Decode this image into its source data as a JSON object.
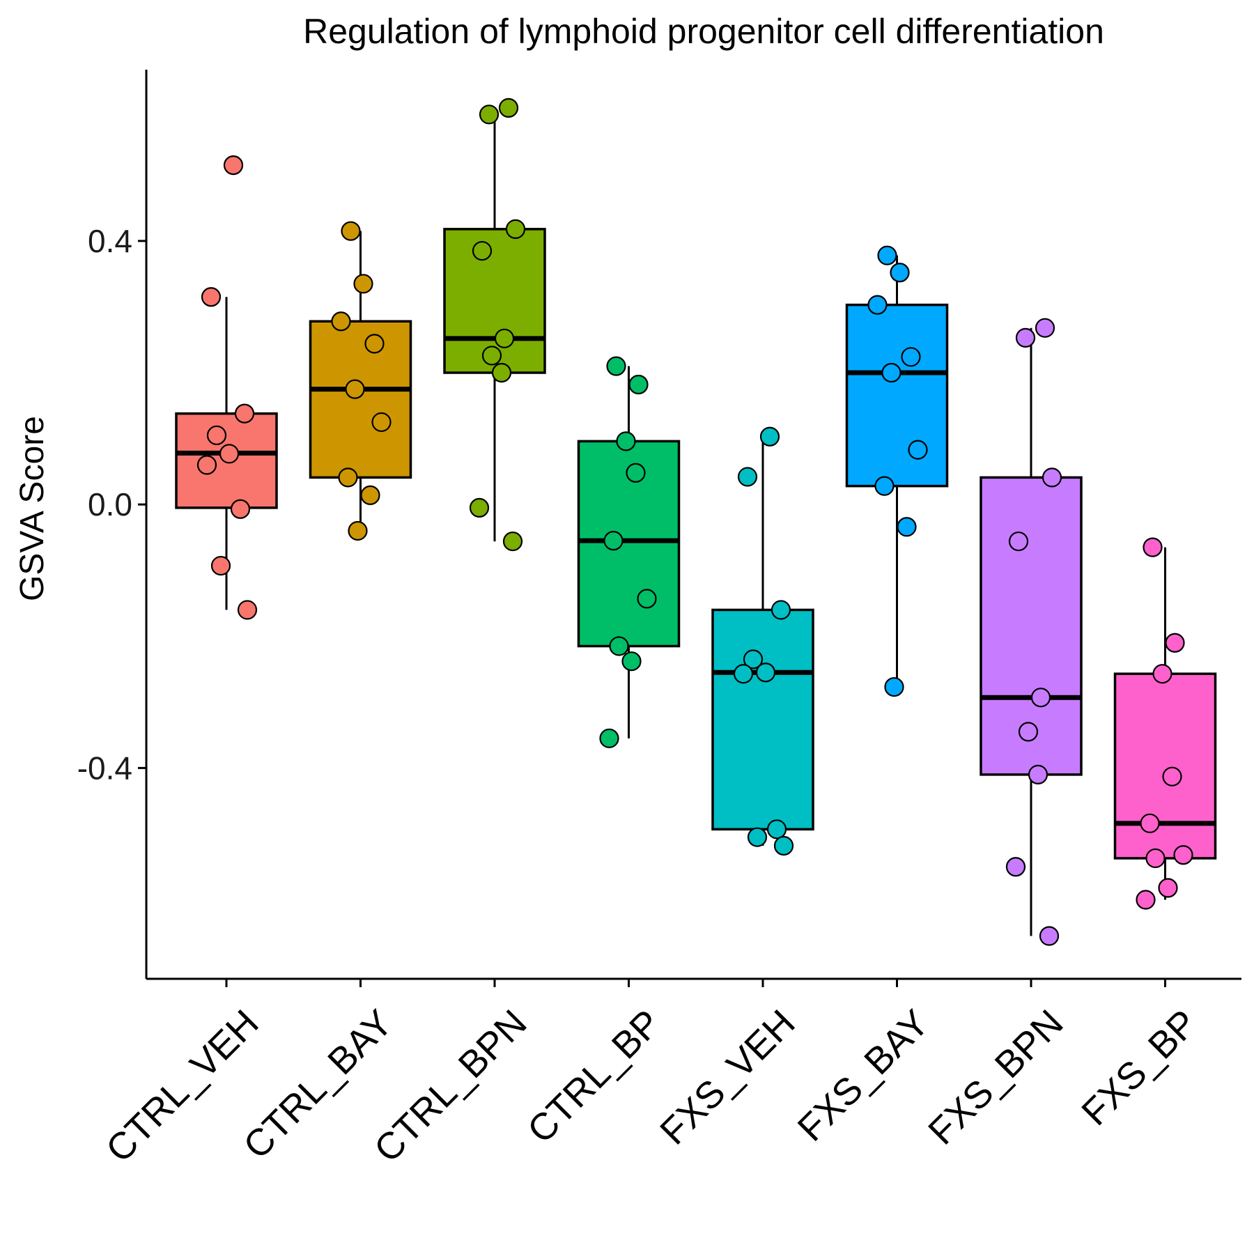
{
  "chart_data": {
    "type": "box",
    "title": "Regulation of lymphoid progenitor cell differentiation",
    "xlabel": "",
    "ylabel": "GSVA Score",
    "ylim": [
      -0.72,
      0.66
    ],
    "yticks": [
      -0.4,
      0.0,
      0.4
    ],
    "ytick_labels": [
      "-0.4",
      "0.0",
      "0.4"
    ],
    "grid": false,
    "legend": "none",
    "groups": [
      {
        "name": "CTRL_VEH",
        "color": "#F8766D",
        "q1": -0.005,
        "median": 0.078,
        "q3": 0.138,
        "whisker_low": -0.16,
        "whisker_high": 0.315,
        "points": [
          0.515,
          0.315,
          0.138,
          0.105,
          0.077,
          0.06,
          -0.007,
          -0.093,
          -0.16
        ]
      },
      {
        "name": "CTRL_BAY",
        "color": "#CD9600",
        "q1": 0.041,
        "median": 0.175,
        "q3": 0.278,
        "whisker_low": -0.04,
        "whisker_high": 0.415,
        "points": [
          0.415,
          0.335,
          0.278,
          0.244,
          0.175,
          0.125,
          0.041,
          0.014,
          -0.04
        ]
      },
      {
        "name": "CTRL_BPN",
        "color": "#7CAE00",
        "q1": 0.2,
        "median": 0.252,
        "q3": 0.418,
        "whisker_low": -0.056,
        "whisker_high": 0.602,
        "points": [
          0.602,
          0.592,
          0.418,
          0.385,
          0.252,
          0.226,
          0.2,
          -0.005,
          -0.056
        ]
      },
      {
        "name": "CTRL_BP",
        "color": "#00BE67",
        "q1": -0.215,
        "median": -0.055,
        "q3": 0.096,
        "whisker_low": -0.355,
        "whisker_high": 0.21,
        "points": [
          0.21,
          0.182,
          0.096,
          0.048,
          -0.055,
          -0.143,
          -0.215,
          -0.238,
          -0.355
        ]
      },
      {
        "name": "FXS_VEH",
        "color": "#00BFC4",
        "q1": -0.493,
        "median": -0.255,
        "q3": -0.16,
        "whisker_low": -0.518,
        "whisker_high": 0.103,
        "points": [
          0.103,
          0.042,
          -0.16,
          -0.235,
          -0.255,
          -0.257,
          -0.493,
          -0.505,
          -0.518
        ]
      },
      {
        "name": "FXS_BAY",
        "color": "#00A9FF",
        "q1": 0.028,
        "median": 0.2,
        "q3": 0.303,
        "whisker_low": -0.277,
        "whisker_high": 0.378,
        "points": [
          0.378,
          0.352,
          0.303,
          0.224,
          0.2,
          0.083,
          0.028,
          -0.034,
          -0.277
        ]
      },
      {
        "name": "FXS_BPN",
        "color": "#C77CFF",
        "q1": -0.41,
        "median": -0.293,
        "q3": 0.041,
        "whisker_low": -0.655,
        "whisker_high": 0.268,
        "points": [
          0.268,
          0.253,
          0.041,
          -0.056,
          -0.293,
          -0.345,
          -0.41,
          -0.55,
          -0.655
        ]
      },
      {
        "name": "FXS_BP",
        "color": "#FF61CC",
        "q1": -0.537,
        "median": -0.484,
        "q3": -0.257,
        "whisker_low": -0.6,
        "whisker_high": -0.065,
        "points": [
          -0.065,
          -0.21,
          -0.257,
          -0.413,
          -0.484,
          -0.532,
          -0.537,
          -0.582,
          -0.6
        ]
      }
    ]
  }
}
